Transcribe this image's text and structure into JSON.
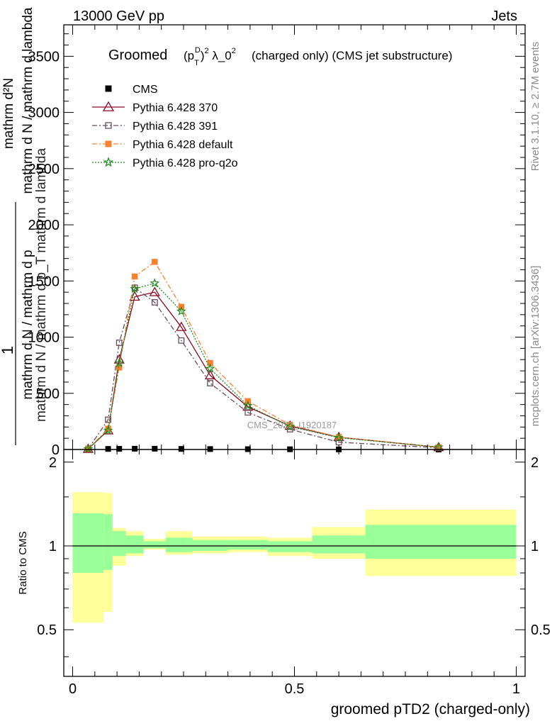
{
  "header": {
    "left": "13000 GeV pp",
    "right": "Jets"
  },
  "side_labels": {
    "rivet": "Rivet 3.1.10, ≥ 2.7M events",
    "mcplots": "mcplots.cern.ch [arXiv:1306.3436]"
  },
  "watermark": "CMS_2021_I1920187",
  "colors": {
    "cms": "#000000",
    "p370": "#8b0a25",
    "p391": "#6b4a5e",
    "pdefault": "#f58231",
    "pq2o": "#1a8a1a",
    "band_inner": "#99ff99",
    "band_outer": "#ffff99"
  },
  "chart_data": [
    {
      "type": "line",
      "title_main": "Groomed",
      "title_rest": "(charged only) (CMS jet substructure)",
      "ylabel_top": "1",
      "ylabel_line1": "mathrm d N / mathrm d p",
      "ylabel_line2": "mathrm d N / mathrm d p_T mathrm d lambda",
      "ylabel_num": "mathrm d²N",
      "ylim": [
        0,
        3780
      ],
      "yticks": [
        0,
        500,
        1000,
        1500,
        2000,
        2500,
        3000,
        3500
      ],
      "ytick_labels": [
        "0",
        "500",
        "1000",
        "1500",
        "2000",
        "2500",
        "3000",
        "3500"
      ],
      "xlim": [
        -0.02,
        1.02
      ],
      "series": [
        {
          "name": "CMS",
          "key": "cms",
          "marker": "square-filled",
          "x": [
            0.035,
            0.08,
            0.105,
            0.14,
            0.185,
            0.245,
            0.31,
            0.395,
            0.49,
            0.6,
            0.825
          ],
          "y": [
            2,
            5,
            6,
            7,
            7,
            5,
            4,
            3,
            2,
            1,
            0.2
          ]
        },
        {
          "name": "Pythia 6.428 370",
          "key": "p370",
          "marker": "triangle-open",
          "dash": "",
          "x": [
            0.035,
            0.08,
            0.105,
            0.14,
            0.185,
            0.245,
            0.31,
            0.395,
            0.49,
            0.6,
            0.825
          ],
          "y": [
            5,
            170,
            800,
            1360,
            1400,
            1090,
            660,
            380,
            210,
            110,
            20
          ]
        },
        {
          "name": "Pythia 6.428 391",
          "key": "p391",
          "marker": "square-open",
          "dash": "7,3,2,3",
          "x": [
            0.035,
            0.08,
            0.105,
            0.14,
            0.185,
            0.245,
            0.31,
            0.395,
            0.49,
            0.6,
            0.825
          ],
          "y": [
            5,
            265,
            950,
            1440,
            1310,
            970,
            590,
            330,
            180,
            65,
            15
          ]
        },
        {
          "name": "Pythia 6.428 default",
          "key": "pdefault",
          "marker": "square-filled",
          "dash": "7,3,2,3",
          "x": [
            0.035,
            0.08,
            0.105,
            0.14,
            0.185,
            0.245,
            0.31,
            0.395,
            0.49,
            0.6,
            0.825
          ],
          "y": [
            5,
            185,
            730,
            1540,
            1670,
            1270,
            770,
            430,
            220,
            110,
            20
          ]
        },
        {
          "name": "Pythia 6.428 pro-q2o",
          "key": "pq2o",
          "marker": "star",
          "dash": "2,2",
          "x": [
            0.035,
            0.08,
            0.105,
            0.14,
            0.185,
            0.245,
            0.31,
            0.395,
            0.49,
            0.6,
            0.825
          ],
          "y": [
            5,
            170,
            770,
            1430,
            1480,
            1230,
            720,
            390,
            205,
            105,
            20
          ]
        }
      ]
    },
    {
      "type": "area",
      "ylabel": "Ratio to CMS",
      "xlabel": "groomed pTD2 (charged-only)",
      "ylim": [
        0.34,
        2.22
      ],
      "yticks": [
        0.5,
        1,
        2
      ],
      "ytick_labels": [
        "0.5",
        "1",
        "2"
      ],
      "xlim": [
        -0.02,
        1.02
      ],
      "xticks": [
        0,
        0.5,
        1
      ],
      "xtick_labels": [
        "0",
        "0.5",
        "1"
      ],
      "ratio_bands": {
        "edges": [
          0,
          0.07,
          0.09,
          0.12,
          0.16,
          0.21,
          0.27,
          0.35,
          0.44,
          0.54,
          0.66,
          1.0
        ],
        "outer_up": [
          1.56,
          1.55,
          1.16,
          1.13,
          1.06,
          1.13,
          1.08,
          1.08,
          1.07,
          1.17,
          1.35
        ],
        "outer_down": [
          0.53,
          0.58,
          0.85,
          0.92,
          0.97,
          0.93,
          0.94,
          0.95,
          0.92,
          0.9,
          0.78
        ],
        "inner_up": [
          1.31,
          1.3,
          1.13,
          1.09,
          1.04,
          1.07,
          1.05,
          1.05,
          1.04,
          1.09,
          1.19
        ],
        "inner_down": [
          0.8,
          0.82,
          0.92,
          0.94,
          0.98,
          0.95,
          0.96,
          0.97,
          0.95,
          0.94,
          0.9
        ]
      }
    }
  ]
}
